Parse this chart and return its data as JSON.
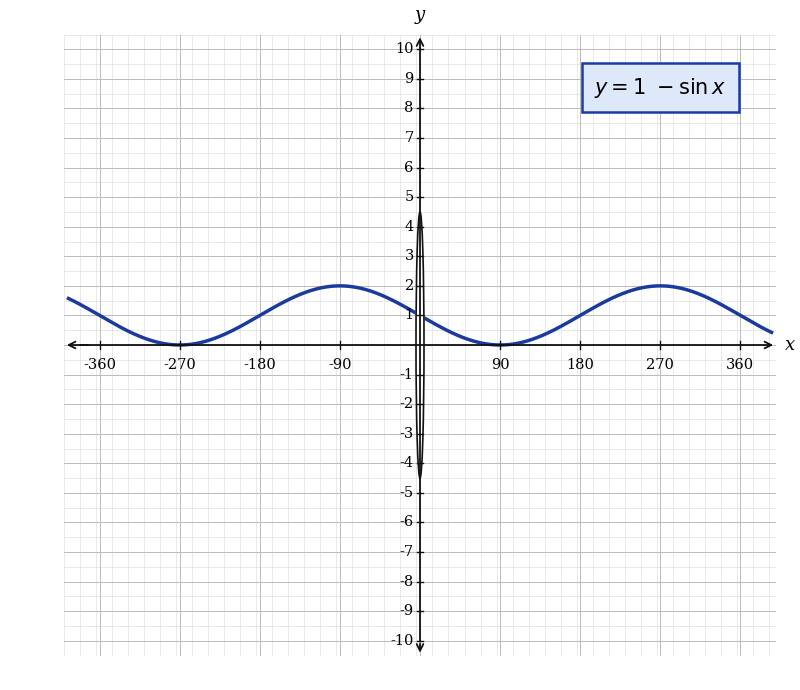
{
  "xlabel": "x",
  "ylabel": "y",
  "xlim": [
    -400,
    400
  ],
  "ylim": [
    -10.5,
    10.5
  ],
  "x_ticks": [
    -360,
    -270,
    -180,
    -90,
    0,
    90,
    180,
    270,
    360
  ],
  "x_labels": [
    "-360",
    "-270",
    "-180",
    "-90",
    "",
    "90",
    "180",
    "270",
    "360"
  ],
  "y_ticks": [
    -10,
    -9,
    -8,
    -7,
    -6,
    -5,
    -4,
    -3,
    -2,
    -1,
    0,
    1,
    2,
    3,
    4,
    5,
    6,
    7,
    8,
    9,
    10
  ],
  "y_labels": [
    "-10",
    "-9",
    "-8",
    "-7",
    "-6",
    "-5",
    "-4",
    "-3",
    "-2",
    "-1",
    "",
    "1",
    "2",
    "3",
    "4",
    "5",
    "6",
    "7",
    "8",
    "9",
    "10"
  ],
  "curve_color": "#1a3a9e",
  "curve_linewidth": 2.5,
  "grid_major_color": "#bbbbbb",
  "grid_minor_color": "#dddddd",
  "background_color": "#ffffff",
  "legend_box_facecolor": "#dde8f8",
  "legend_box_edgecolor": "#1a3aaa",
  "axis_color": "#111111",
  "axis_lw": 1.3,
  "tick_lw": 1.0,
  "tick_size_x": 0.13,
  "tick_size_y": 3.5,
  "origin_circle_r": 4.5,
  "arrow_mutation_scale": 12
}
